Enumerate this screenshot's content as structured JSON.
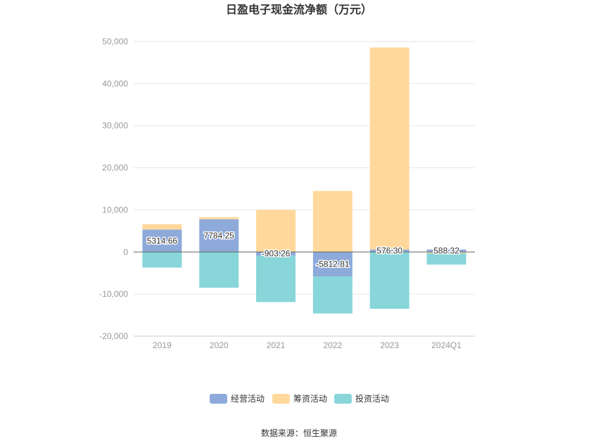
{
  "chart_data": {
    "type": "bar",
    "stacked": true,
    "title": "日盈电子现金流净额（万元）",
    "categories": [
      "2019",
      "2020",
      "2021",
      "2022",
      "2023",
      "2024Q1"
    ],
    "series": [
      {
        "name": "经营活动",
        "color": "#8eaadb",
        "values": [
          5314.66,
          7784.25,
          -903.26,
          -5812.81,
          576.3,
          588.32
        ]
      },
      {
        "name": "筹资活动",
        "color": "#ffd99c",
        "values": [
          1300,
          500,
          10000,
          14500,
          48000,
          -300
        ]
      },
      {
        "name": "投资活动",
        "color": "#88d6d9",
        "values": [
          -3700,
          -8500,
          -11000,
          -8800,
          -13500,
          -2700
        ]
      }
    ],
    "data_labels": [
      "5314.66",
      "7784.25",
      "-903.26",
      "-5812.81",
      "576.30",
      "588.32"
    ],
    "ylim": [
      -20000,
      50000
    ],
    "yticks": [
      50000,
      40000,
      30000,
      20000,
      10000,
      0,
      -10000,
      -20000
    ],
    "ytick_labels": [
      "50,000",
      "40,000",
      "30,000",
      "20,000",
      "10,000",
      "0",
      "-10,000",
      "-20,000"
    ],
    "grid": true,
    "legend_position": "bottom"
  },
  "source": "数据来源：恒生聚源"
}
